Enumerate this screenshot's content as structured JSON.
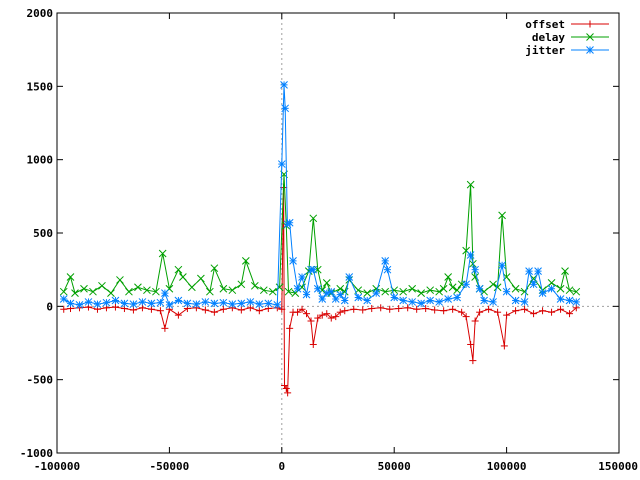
{
  "chart_data": {
    "type": "line",
    "xlim": [
      -100000,
      150000
    ],
    "ylim": [
      -1000,
      2000
    ],
    "xticks": [
      -100000,
      -50000,
      0,
      50000,
      100000,
      150000
    ],
    "yticks": [
      -1000,
      -500,
      0,
      500,
      1000,
      1500,
      2000
    ],
    "xtick_labels": [
      "-100000",
      "-50000",
      "0",
      "50000",
      "100000",
      "150000"
    ],
    "ytick_labels": [
      "-1000",
      "-500",
      "0",
      "500",
      "1000",
      "1500",
      "2000"
    ],
    "zero_axes": true,
    "legend_position": "top-right",
    "series": [
      {
        "name": "offset",
        "color": "#d80000",
        "marker": "plus",
        "points": [
          [
            -97000,
            -20
          ],
          [
            -94000,
            -15
          ],
          [
            -90000,
            -10
          ],
          [
            -86000,
            -5
          ],
          [
            -82000,
            -20
          ],
          [
            -78000,
            -10
          ],
          [
            -74000,
            -5
          ],
          [
            -70000,
            -15
          ],
          [
            -66000,
            -25
          ],
          [
            -62000,
            -10
          ],
          [
            -58000,
            -20
          ],
          [
            -54000,
            -30
          ],
          [
            -52000,
            -150
          ],
          [
            -50000,
            -20
          ],
          [
            -46000,
            -60
          ],
          [
            -42000,
            -15
          ],
          [
            -38000,
            -10
          ],
          [
            -34000,
            -25
          ],
          [
            -30000,
            -40
          ],
          [
            -26000,
            -20
          ],
          [
            -22000,
            -10
          ],
          [
            -18000,
            -25
          ],
          [
            -14000,
            -10
          ],
          [
            -10000,
            -30
          ],
          [
            -6000,
            -15
          ],
          [
            -2000,
            -10
          ],
          [
            0,
            -20
          ],
          [
            800,
            810
          ],
          [
            1200,
            -540
          ],
          [
            2000,
            -560
          ],
          [
            2600,
            -590
          ],
          [
            3500,
            -150
          ],
          [
            5000,
            -40
          ],
          [
            7000,
            -40
          ],
          [
            9000,
            -20
          ],
          [
            11000,
            -50
          ],
          [
            13000,
            -100
          ],
          [
            14000,
            -260
          ],
          [
            16000,
            -80
          ],
          [
            18000,
            -60
          ],
          [
            20000,
            -50
          ],
          [
            22000,
            -80
          ],
          [
            24000,
            -70
          ],
          [
            26000,
            -40
          ],
          [
            28000,
            -30
          ],
          [
            32000,
            -20
          ],
          [
            36000,
            -25
          ],
          [
            40000,
            -15
          ],
          [
            44000,
            -10
          ],
          [
            48000,
            -20
          ],
          [
            52000,
            -15
          ],
          [
            56000,
            -10
          ],
          [
            60000,
            -20
          ],
          [
            64000,
            -15
          ],
          [
            68000,
            -25
          ],
          [
            72000,
            -30
          ],
          [
            76000,
            -20
          ],
          [
            80000,
            -40
          ],
          [
            82000,
            -70
          ],
          [
            84000,
            -260
          ],
          [
            85000,
            -370
          ],
          [
            86000,
            -100
          ],
          [
            88000,
            -40
          ],
          [
            92000,
            -20
          ],
          [
            96000,
            -40
          ],
          [
            99000,
            -270
          ],
          [
            100000,
            -60
          ],
          [
            104000,
            -30
          ],
          [
            108000,
            -20
          ],
          [
            112000,
            -50
          ],
          [
            116000,
            -30
          ],
          [
            120000,
            -40
          ],
          [
            124000,
            -20
          ],
          [
            128000,
            -50
          ],
          [
            131000,
            -10
          ]
        ]
      },
      {
        "name": "delay",
        "color": "#00a000",
        "marker": "cross",
        "points": [
          [
            -97000,
            100
          ],
          [
            -94000,
            200
          ],
          [
            -92000,
            90
          ],
          [
            -88000,
            120
          ],
          [
            -84000,
            100
          ],
          [
            -80000,
            140
          ],
          [
            -76000,
            90
          ],
          [
            -72000,
            180
          ],
          [
            -68000,
            100
          ],
          [
            -64000,
            130
          ],
          [
            -60000,
            110
          ],
          [
            -56000,
            100
          ],
          [
            -53000,
            360
          ],
          [
            -50000,
            120
          ],
          [
            -46000,
            250
          ],
          [
            -44000,
            200
          ],
          [
            -40000,
            130
          ],
          [
            -36000,
            190
          ],
          [
            -32000,
            100
          ],
          [
            -30000,
            260
          ],
          [
            -26000,
            120
          ],
          [
            -22000,
            110
          ],
          [
            -18000,
            150
          ],
          [
            -16000,
            310
          ],
          [
            -12000,
            140
          ],
          [
            -8000,
            110
          ],
          [
            -4000,
            100
          ],
          [
            -1000,
            130
          ],
          [
            1000,
            900
          ],
          [
            2000,
            550
          ],
          [
            3000,
            100
          ],
          [
            6000,
            90
          ],
          [
            9000,
            130
          ],
          [
            12000,
            240
          ],
          [
            14000,
            600
          ],
          [
            16000,
            250
          ],
          [
            18000,
            110
          ],
          [
            20000,
            160
          ],
          [
            22000,
            90
          ],
          [
            26000,
            120
          ],
          [
            28000,
            100
          ],
          [
            30000,
            180
          ],
          [
            34000,
            110
          ],
          [
            38000,
            90
          ],
          [
            42000,
            120
          ],
          [
            46000,
            100
          ],
          [
            50000,
            110
          ],
          [
            54000,
            100
          ],
          [
            58000,
            120
          ],
          [
            62000,
            90
          ],
          [
            66000,
            110
          ],
          [
            70000,
            100
          ],
          [
            72000,
            120
          ],
          [
            74000,
            200
          ],
          [
            76000,
            130
          ],
          [
            78000,
            110
          ],
          [
            80000,
            150
          ],
          [
            82000,
            380
          ],
          [
            84000,
            830
          ],
          [
            85000,
            290
          ],
          [
            86000,
            200
          ],
          [
            88000,
            120
          ],
          [
            90000,
            100
          ],
          [
            94000,
            150
          ],
          [
            96000,
            130
          ],
          [
            98000,
            620
          ],
          [
            100000,
            200
          ],
          [
            104000,
            120
          ],
          [
            108000,
            100
          ],
          [
            112000,
            190
          ],
          [
            116000,
            110
          ],
          [
            120000,
            160
          ],
          [
            124000,
            120
          ],
          [
            126000,
            240
          ],
          [
            128000,
            110
          ],
          [
            131000,
            100
          ]
        ]
      },
      {
        "name": "jitter",
        "color": "#0080ff",
        "marker": "star",
        "points": [
          [
            -97000,
            50
          ],
          [
            -94000,
            20
          ],
          [
            -90000,
            10
          ],
          [
            -86000,
            30
          ],
          [
            -82000,
            15
          ],
          [
            -78000,
            25
          ],
          [
            -74000,
            40
          ],
          [
            -70000,
            20
          ],
          [
            -66000,
            15
          ],
          [
            -62000,
            30
          ],
          [
            -58000,
            20
          ],
          [
            -54000,
            25
          ],
          [
            -52000,
            90
          ],
          [
            -50000,
            10
          ],
          [
            -46000,
            40
          ],
          [
            -42000,
            20
          ],
          [
            -38000,
            15
          ],
          [
            -34000,
            30
          ],
          [
            -30000,
            20
          ],
          [
            -26000,
            25
          ],
          [
            -22000,
            15
          ],
          [
            -18000,
            20
          ],
          [
            -14000,
            30
          ],
          [
            -10000,
            15
          ],
          [
            -6000,
            20
          ],
          [
            -2000,
            10
          ],
          [
            0,
            970
          ],
          [
            1000,
            1510
          ],
          [
            1500,
            1350
          ],
          [
            2500,
            560
          ],
          [
            3500,
            570
          ],
          [
            5000,
            310
          ],
          [
            7000,
            120
          ],
          [
            9000,
            200
          ],
          [
            11000,
            80
          ],
          [
            13000,
            250
          ],
          [
            14000,
            250
          ],
          [
            16000,
            120
          ],
          [
            18000,
            50
          ],
          [
            20000,
            90
          ],
          [
            22000,
            100
          ],
          [
            24000,
            50
          ],
          [
            26000,
            80
          ],
          [
            28000,
            40
          ],
          [
            30000,
            200
          ],
          [
            34000,
            60
          ],
          [
            38000,
            40
          ],
          [
            42000,
            90
          ],
          [
            46000,
            310
          ],
          [
            47000,
            250
          ],
          [
            50000,
            60
          ],
          [
            54000,
            40
          ],
          [
            58000,
            30
          ],
          [
            62000,
            20
          ],
          [
            66000,
            40
          ],
          [
            70000,
            30
          ],
          [
            74000,
            50
          ],
          [
            78000,
            60
          ],
          [
            82000,
            150
          ],
          [
            84000,
            350
          ],
          [
            86000,
            250
          ],
          [
            88000,
            120
          ],
          [
            90000,
            40
          ],
          [
            94000,
            30
          ],
          [
            98000,
            280
          ],
          [
            100000,
            100
          ],
          [
            104000,
            40
          ],
          [
            108000,
            30
          ],
          [
            110000,
            240
          ],
          [
            112000,
            150
          ],
          [
            114000,
            240
          ],
          [
            116000,
            90
          ],
          [
            120000,
            120
          ],
          [
            124000,
            50
          ],
          [
            128000,
            40
          ],
          [
            131000,
            30
          ]
        ]
      }
    ]
  }
}
